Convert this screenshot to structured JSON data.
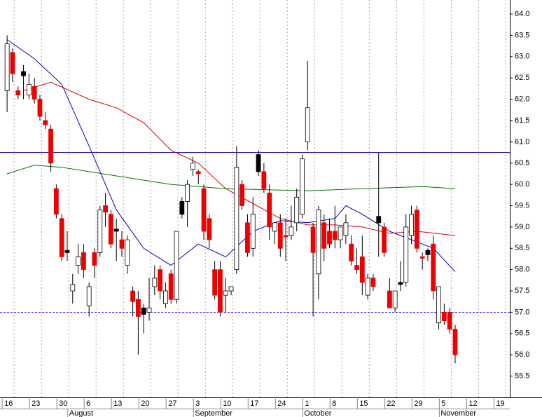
{
  "chart_data": {
    "type": "candlestick",
    "xlim": [
      -1.3,
      92
    ],
    "ylim": [
      55.0,
      64.33
    ],
    "yticks": [
      {
        "value": 55.5,
        "label": "55.5"
      },
      {
        "value": 56,
        "label": "56.0"
      },
      {
        "value": 56.5,
        "label": "56.5"
      },
      {
        "value": 57,
        "label": "57.0"
      },
      {
        "value": 57.5,
        "label": "57.5"
      },
      {
        "value": 58,
        "label": "58.0"
      },
      {
        "value": 58.5,
        "label": "58.5"
      },
      {
        "value": 59,
        "label": "59.0"
      },
      {
        "value": 59.5,
        "label": "59.5"
      },
      {
        "value": 60,
        "label": "60.0"
      },
      {
        "value": 60.5,
        "label": "60.5"
      },
      {
        "value": 61,
        "label": "61.0"
      },
      {
        "value": 61.5,
        "label": "61.5"
      },
      {
        "value": 62,
        "label": "62.0"
      },
      {
        "value": 62.5,
        "label": "62.5"
      },
      {
        "value": 63,
        "label": "63.0"
      },
      {
        "value": 63.5,
        "label": "63.5"
      },
      {
        "value": 64,
        "label": "64.0"
      }
    ],
    "xticks": [
      {
        "value": 0,
        "label": "16"
      },
      {
        "value": 5,
        "label": "23"
      },
      {
        "value": 10,
        "label": "30"
      },
      {
        "value": 15,
        "label": "6"
      },
      {
        "value": 20,
        "label": "13"
      },
      {
        "value": 25,
        "label": "20"
      },
      {
        "value": 30,
        "label": "27"
      },
      {
        "value": 35,
        "label": "3"
      },
      {
        "value": 40,
        "label": "10"
      },
      {
        "value": 45,
        "label": "17"
      },
      {
        "value": 50,
        "label": "24"
      },
      {
        "value": 55,
        "label": "1"
      },
      {
        "value": 60,
        "label": "8"
      },
      {
        "value": 65,
        "label": "15"
      },
      {
        "value": 70,
        "label": "22"
      },
      {
        "value": 75,
        "label": "29"
      },
      {
        "value": 80,
        "label": "5"
      },
      {
        "value": 85,
        "label": "12"
      },
      {
        "value": 90,
        "label": "19"
      }
    ],
    "months": [
      {
        "value": 12,
        "label": "August"
      },
      {
        "value": 35,
        "label": "September"
      },
      {
        "value": 55,
        "label": "October"
      },
      {
        "value": 80,
        "label": "November"
      }
    ],
    "grid": true,
    "candles": {
      "open": [
        62.2,
        63.1,
        62.2,
        62.65,
        62.1,
        62.3,
        62.0,
        61.5,
        61.3,
        59.9,
        59.2,
        58.45,
        57.5,
        58.1,
        58.4,
        57.15,
        58.4,
        58.4,
        59.5,
        59.3,
        58.95,
        58.7,
        58.1,
        57.5,
        57.3,
        57.1,
        57.0,
        57.6,
        58.0,
        57.2,
        57.9,
        57.3,
        59.6,
        59.6,
        60.35,
        60.3,
        59.9,
        59.2,
        58.0,
        58.0,
        57.4,
        57.5,
        58.0,
        60.0,
        59.1,
        58.5,
        60.7,
        60.3,
        59.8,
        58.9,
        59.1,
        58.8,
        58.8,
        59.1,
        59.3,
        61.0,
        59.0,
        57.9,
        59.1,
        58.9,
        58.9,
        58.7,
        58.8,
        58.6,
        58.1,
        58.3,
        57.4,
        57.8,
        59.25,
        59.0,
        57.5,
        57.1,
        57.7,
        57.7,
        58.8,
        59.4,
        58.3,
        58.45,
        58.6,
        56.75,
        57.0,
        57.0,
        56.6
      ],
      "high": [
        63.5,
        63.2,
        62.3,
        62.8,
        62.6,
        62.5,
        62.1,
        61.7,
        61.4,
        60.0,
        59.3,
        58.9,
        57.9,
        58.6,
        58.6,
        57.7,
        58.5,
        59.5,
        59.8,
        59.4,
        59.2,
        58.9,
        58.8,
        57.6,
        57.5,
        57.2,
        57.8,
        58.1,
        58.1,
        57.7,
        58.0,
        58.9,
        59.7,
        60.1,
        60.65,
        60.35,
        60.0,
        59.3,
        58.2,
        58.2,
        57.8,
        57.6,
        60.9,
        60.1,
        59.3,
        59.7,
        60.8,
        60.5,
        60.0,
        59.0,
        59.3,
        59.2,
        59.5,
        59.9,
        60.7,
        62.9,
        59.1,
        59.5,
        59.3,
        59.2,
        59.5,
        59.0,
        59.3,
        58.8,
        58.5,
        58.8,
        57.9,
        57.9,
        60.75,
        59.1,
        57.8,
        57.5,
        58.2,
        59.3,
        59.5,
        59.5,
        58.4,
        58.5,
        58.8,
        57.6,
        57.2,
        57.1,
        56.7
      ],
      "low": [
        61.7,
        62.4,
        62.0,
        62.0,
        62.0,
        61.9,
        61.5,
        61.3,
        60.3,
        59.2,
        58.2,
        58.2,
        57.2,
        57.9,
        57.8,
        56.9,
        57.8,
        58.3,
        59.0,
        58.5,
        58.2,
        58.3,
        57.9,
        56.9,
        56.0,
        56.5,
        56.8,
        57.4,
        57.3,
        57.1,
        57.2,
        57.2,
        59.2,
        59.0,
        60.2,
        60.0,
        58.7,
        58.5,
        57.3,
        56.9,
        57.0,
        57.4,
        57.9,
        59.4,
        58.3,
        58.3,
        60.2,
        59.8,
        58.7,
        58.6,
        58.3,
        58.2,
        58.7,
        58.9,
        59.2,
        60.8,
        56.9,
        57.3,
        58.2,
        58.5,
        58.5,
        58.5,
        58.6,
        58.1,
        57.9,
        57.4,
        57.3,
        57.5,
        58.3,
        58.3,
        57.1,
        57.0,
        57.5,
        57.6,
        58.6,
        58.4,
        58.0,
        58.2,
        57.3,
        56.6,
        56.7,
        56.5,
        55.8
      ],
      "close": [
        63.3,
        62.6,
        62.1,
        62.55,
        62.35,
        62.0,
        61.6,
        61.4,
        60.5,
        59.3,
        58.3,
        58.4,
        57.65,
        58.3,
        58.0,
        57.6,
        58.1,
        59.4,
        59.35,
        58.6,
        58.9,
        58.5,
        58.7,
        57.25,
        56.9,
        56.95,
        57.1,
        57.8,
        57.5,
        57.5,
        57.3,
        58.9,
        59.3,
        60.0,
        60.5,
        60.25,
        58.9,
        58.7,
        57.4,
        57.0,
        57.5,
        57.6,
        60.4,
        59.5,
        58.4,
        59.3,
        60.3,
        59.9,
        59.0,
        59.1,
        58.5,
        58.8,
        59.0,
        59.7,
        60.6,
        61.8,
        58.4,
        59.4,
        58.5,
        58.6,
        58.7,
        59.0,
        59.1,
        58.2,
        58.0,
        57.7,
        57.8,
        57.6,
        59.1,
        58.4,
        57.1,
        57.5,
        57.65,
        59.0,
        59.3,
        58.5,
        58.3,
        58.35,
        57.5,
        57.6,
        56.8,
        56.6,
        56.0
      ],
      "fill": [
        "#ffffff",
        "#ee0000",
        "#ee0000",
        "#000000",
        "#ffffff",
        "#ee0000",
        "#ee0000",
        "#ee0000",
        "#ee0000",
        "#ee0000",
        "#ee0000",
        "#000000",
        "#ffffff",
        "#ffffff",
        "#ee0000",
        "#ffffff",
        "#ee0000",
        "#ffffff",
        "#ee0000",
        "#ee0000",
        "#000000",
        "#ee0000",
        "#ffffff",
        "#ee0000",
        "#ee0000",
        "#000000",
        "#ffffff",
        "#ffffff",
        "#ee0000",
        "#ffffff",
        "#ee0000",
        "#ffffff",
        "#000000",
        "#ffffff",
        "#ffffff",
        "#ee0000",
        "#ee0000",
        "#ee0000",
        "#ee0000",
        "#ee0000",
        "#ffffff",
        "#ffffff",
        "#ffffff",
        "#ee0000",
        "#ee0000",
        "#ffffff",
        "#000000",
        "#ee0000",
        "#ee0000",
        "#ffffff",
        "#ee0000",
        "#ee0000",
        "#ffffff",
        "#ffffff",
        "#ffffff",
        "#ffffff",
        "#ee0000",
        "#ffffff",
        "#ee0000",
        "#ee0000",
        "#ee0000",
        "#ffffff",
        "#ffffff",
        "#ee0000",
        "#ee0000",
        "#ee0000",
        "#ffffff",
        "#ee0000",
        "#000000",
        "#ee0000",
        "#ee0000",
        "#ffffff",
        "#000000",
        "#ffffff",
        "#ffffff",
        "#ee0000",
        "#ee0000",
        "#000000",
        "#ee0000",
        "#ffffff",
        "#ee0000",
        "#ee0000",
        "#ee0000"
      ]
    },
    "series": [
      {
        "color": "#0000cc",
        "x": [
          0,
          5,
          10,
          15,
          20,
          25,
          30,
          35,
          40,
          45,
          50,
          55,
          60,
          62,
          65,
          70,
          75,
          78,
          82
        ],
        "values": [
          63.4,
          62.95,
          62.35,
          60.9,
          59.4,
          58.5,
          58.1,
          58.6,
          58.3,
          58.9,
          59.15,
          59.1,
          59.2,
          59.5,
          59.3,
          58.9,
          58.65,
          58.5,
          57.95
        ]
      },
      {
        "color": "#dd0000",
        "x": [
          3,
          8,
          15,
          20,
          25,
          30,
          35,
          40,
          45,
          50,
          55,
          60,
          65,
          70,
          75,
          82
        ],
        "values": [
          62.2,
          62.4,
          62.0,
          61.8,
          61.45,
          60.8,
          60.5,
          59.9,
          59.55,
          59.2,
          59.05,
          59.05,
          59.0,
          58.85,
          58.9,
          58.8
        ]
      },
      {
        "color": "#007700",
        "x": [
          0,
          5,
          10,
          20,
          30,
          40,
          55,
          65,
          76,
          82
        ],
        "values": [
          60.25,
          60.45,
          60.4,
          60.2,
          60.0,
          59.9,
          59.85,
          59.9,
          59.95,
          59.9
        ]
      }
    ],
    "hlines": [
      {
        "value": 60.75,
        "color": "#000080",
        "style": "solid"
      },
      {
        "value": 57.0,
        "color": "#0000ff",
        "style": "dashed"
      }
    ]
  }
}
